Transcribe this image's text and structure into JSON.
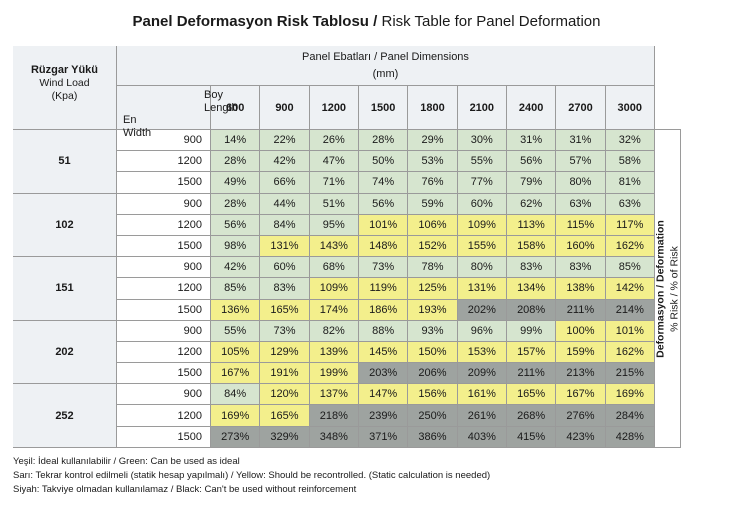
{
  "title": {
    "turkish": "Panel Deformasyon Risk Tablosu /",
    "english": "Risk Table for Panel Deformation"
  },
  "header": {
    "wind_tr": "Rüzgar Yükü",
    "wind_en": "Wind Load",
    "wind_unit": "(Kpa)",
    "panel_dims": "Panel Ebatları / Panel Dimensions",
    "panel_unit": "(mm)",
    "length_tr": "Boy",
    "length_en": "Length",
    "width_tr": "En",
    "width_en": "Width"
  },
  "lengths": [
    "600",
    "900",
    "1200",
    "1500",
    "1800",
    "2100",
    "2400",
    "2700",
    "3000"
  ],
  "groups": [
    {
      "wind": "51",
      "rows": [
        {
          "width": "900",
          "values": [
            "14%",
            "22%",
            "26%",
            "28%",
            "29%",
            "30%",
            "31%",
            "31%",
            "32%"
          ],
          "levels": [
            "g",
            "g",
            "g",
            "g",
            "g",
            "g",
            "g",
            "g",
            "g"
          ]
        },
        {
          "width": "1200",
          "values": [
            "28%",
            "42%",
            "47%",
            "50%",
            "53%",
            "55%",
            "56%",
            "57%",
            "58%"
          ],
          "levels": [
            "g",
            "g",
            "g",
            "g",
            "g",
            "g",
            "g",
            "g",
            "g"
          ]
        },
        {
          "width": "1500",
          "values": [
            "49%",
            "66%",
            "71%",
            "74%",
            "76%",
            "77%",
            "79%",
            "80%",
            "81%"
          ],
          "levels": [
            "g",
            "g",
            "g",
            "g",
            "g",
            "g",
            "g",
            "g",
            "g"
          ]
        }
      ]
    },
    {
      "wind": "102",
      "rows": [
        {
          "width": "900",
          "values": [
            "28%",
            "44%",
            "51%",
            "56%",
            "59%",
            "60%",
            "62%",
            "63%",
            "63%"
          ],
          "levels": [
            "g",
            "g",
            "g",
            "g",
            "g",
            "g",
            "g",
            "g",
            "g"
          ]
        },
        {
          "width": "1200",
          "values": [
            "56%",
            "84%",
            "95%",
            "101%",
            "106%",
            "109%",
            "113%",
            "115%",
            "117%"
          ],
          "levels": [
            "g",
            "g",
            "g",
            "y",
            "y",
            "y",
            "y",
            "y",
            "y"
          ]
        },
        {
          "width": "1500",
          "values": [
            "98%",
            "131%",
            "143%",
            "148%",
            "152%",
            "155%",
            "158%",
            "160%",
            "162%"
          ],
          "levels": [
            "g",
            "y",
            "y",
            "y",
            "y",
            "y",
            "y",
            "y",
            "y"
          ]
        }
      ]
    },
    {
      "wind": "151",
      "rows": [
        {
          "width": "900",
          "values": [
            "42%",
            "60%",
            "68%",
            "73%",
            "78%",
            "80%",
            "83%",
            "83%",
            "85%"
          ],
          "levels": [
            "g",
            "g",
            "g",
            "g",
            "g",
            "g",
            "g",
            "g",
            "g"
          ]
        },
        {
          "width": "1200",
          "values": [
            "85%",
            "83%",
            "109%",
            "119%",
            "125%",
            "131%",
            "134%",
            "138%",
            "142%"
          ],
          "levels": [
            "g",
            "g",
            "y",
            "y",
            "y",
            "y",
            "y",
            "y",
            "y"
          ]
        },
        {
          "width": "1500",
          "values": [
            "136%",
            "165%",
            "174%",
            "186%",
            "193%",
            "202%",
            "208%",
            "211%",
            "214%"
          ],
          "levels": [
            "y",
            "y",
            "y",
            "y",
            "y",
            "b",
            "b",
            "b",
            "b"
          ]
        }
      ]
    },
    {
      "wind": "202",
      "rows": [
        {
          "width": "900",
          "values": [
            "55%",
            "73%",
            "82%",
            "88%",
            "93%",
            "96%",
            "99%",
            "100%",
            "101%"
          ],
          "levels": [
            "g",
            "g",
            "g",
            "g",
            "g",
            "g",
            "g",
            "y",
            "y"
          ]
        },
        {
          "width": "1200",
          "values": [
            "105%",
            "129%",
            "139%",
            "145%",
            "150%",
            "153%",
            "157%",
            "159%",
            "162%"
          ],
          "levels": [
            "y",
            "y",
            "y",
            "y",
            "y",
            "y",
            "y",
            "y",
            "y"
          ]
        },
        {
          "width": "1500",
          "values": [
            "167%",
            "191%",
            "199%",
            "203%",
            "206%",
            "209%",
            "211%",
            "213%",
            "215%"
          ],
          "levels": [
            "y",
            "y",
            "y",
            "b",
            "b",
            "b",
            "b",
            "b",
            "b"
          ]
        }
      ]
    },
    {
      "wind": "252",
      "rows": [
        {
          "width": "900",
          "values": [
            "84%",
            "120%",
            "137%",
            "147%",
            "156%",
            "161%",
            "165%",
            "167%",
            "169%"
          ],
          "levels": [
            "g",
            "y",
            "y",
            "y",
            "y",
            "y",
            "y",
            "y",
            "y"
          ]
        },
        {
          "width": "1200",
          "values": [
            "169%",
            "165%",
            "218%",
            "239%",
            "250%",
            "261%",
            "268%",
            "276%",
            "284%"
          ],
          "levels": [
            "y",
            "y",
            "b",
            "b",
            "b",
            "b",
            "b",
            "b",
            "b"
          ]
        },
        {
          "width": "1500",
          "values": [
            "273%",
            "329%",
            "348%",
            "371%",
            "386%",
            "403%",
            "415%",
            "423%",
            "428%"
          ],
          "levels": [
            "b",
            "b",
            "b",
            "b",
            "b",
            "b",
            "b",
            "b",
            "b"
          ]
        }
      ]
    }
  ],
  "side_label": {
    "line1": "Deformasyon / Deformation",
    "line2": "% Risk / % of Risk"
  },
  "legend": {
    "green": "Yeşil: İdeal kullanılabilir / Green: Can be used as ideal",
    "yellow": "Sarı: Tekrar kontrol edilmeli (statik hesap yapılmalı) / Yellow: Should be recontrolled. (Static calculation is needed)",
    "black": "Siyah: Takviye olmadan kullanılamaz / Black: Can't be used without reinforcement"
  },
  "colors": {
    "green": "#d6e5cf",
    "yellow": "#f3ef8c",
    "black": "#9ea3a0",
    "header_bg": "#eef1f4"
  }
}
